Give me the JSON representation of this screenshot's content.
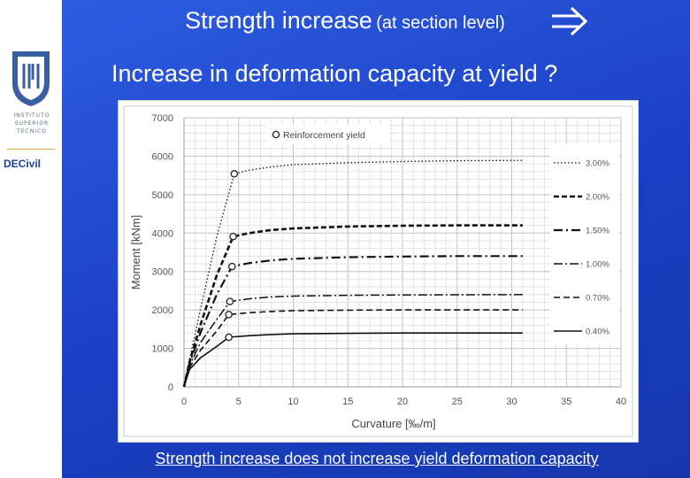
{
  "slide": {
    "title_main": "Strength increase",
    "title_paren": "(at section level)",
    "subtitle": "Increase in deformation capacity at yield ?",
    "footer": "Strength increase does not increase yield deformation capacity"
  },
  "sidebar": {
    "institute_lines": [
      "INSTITUTO",
      "SUPERIOR",
      "TÉCNICO"
    ],
    "department": "DECivil"
  },
  "colors": {
    "background": "#1d44c7",
    "text": "#ffffff",
    "chart_bg": "#ffffff",
    "series": "#000000"
  },
  "icons": {
    "implies": "double-right-arrow-icon",
    "logo": "ist-shield-logo-icon"
  },
  "chart_data": {
    "type": "line",
    "title": "",
    "xlabel": "Curvature [‰/m]",
    "ylabel": "Moment [kNm]",
    "xlim": [
      0,
      40
    ],
    "ylim": [
      0,
      7000
    ],
    "xticks": [
      0,
      5,
      10,
      15,
      20,
      25,
      30,
      35,
      40
    ],
    "yticks": [
      0,
      1000,
      2000,
      3000,
      4000,
      5000,
      6000,
      7000
    ],
    "grid": true,
    "legend_position": "right",
    "marker_legend": "Reinforcement yield",
    "series": [
      {
        "name": "3.00%",
        "style": "dotted",
        "x": [
          0,
          0.5,
          1.5,
          3,
          4.6,
          6,
          8,
          10,
          15,
          20,
          25,
          31
        ],
        "y": [
          0,
          700,
          2000,
          3900,
          5540,
          5640,
          5720,
          5780,
          5830,
          5860,
          5880,
          5890
        ],
        "yield": [
          4.6,
          5540
        ]
      },
      {
        "name": "2.00%",
        "style": "dashed-bold",
        "x": [
          0,
          0.5,
          1.5,
          3,
          4.5,
          6,
          8,
          10,
          15,
          20,
          25,
          31
        ],
        "y": [
          0,
          650,
          1600,
          2900,
          3910,
          4000,
          4080,
          4120,
          4170,
          4190,
          4200,
          4200
        ],
        "yield": [
          4.5,
          3910
        ]
      },
      {
        "name": "1.50%",
        "style": "dash-dot-bold",
        "x": [
          0,
          0.5,
          1.5,
          3,
          4.4,
          6,
          8,
          10,
          15,
          20,
          25,
          31
        ],
        "y": [
          0,
          600,
          1400,
          2400,
          3130,
          3220,
          3290,
          3330,
          3370,
          3390,
          3400,
          3400
        ],
        "yield": [
          4.4,
          3130
        ]
      },
      {
        "name": "1.00%",
        "style": "dash-dot",
        "x": [
          0,
          0.5,
          1.5,
          3,
          4.2,
          6,
          8,
          10,
          15,
          20,
          25,
          31
        ],
        "y": [
          0,
          550,
          1150,
          1750,
          2220,
          2290,
          2340,
          2360,
          2380,
          2390,
          2395,
          2400
        ],
        "yield": [
          4.2,
          2220
        ]
      },
      {
        "name": "0.70%",
        "style": "dashed",
        "x": [
          0,
          0.5,
          1.5,
          3,
          4.1,
          6,
          8,
          10,
          15,
          20,
          25,
          31
        ],
        "y": [
          0,
          500,
          950,
          1450,
          1880,
          1930,
          1960,
          1980,
          1995,
          2000,
          2000,
          2000
        ],
        "yield": [
          4.1,
          1880
        ]
      },
      {
        "name": "0.40%",
        "style": "solid",
        "x": [
          0,
          0.5,
          1.5,
          3,
          4.1,
          6,
          8,
          10,
          15,
          20,
          25,
          31
        ],
        "y": [
          0,
          450,
          750,
          1050,
          1290,
          1330,
          1360,
          1380,
          1390,
          1400,
          1400,
          1400
        ],
        "yield": [
          4.1,
          1290
        ]
      }
    ]
  }
}
